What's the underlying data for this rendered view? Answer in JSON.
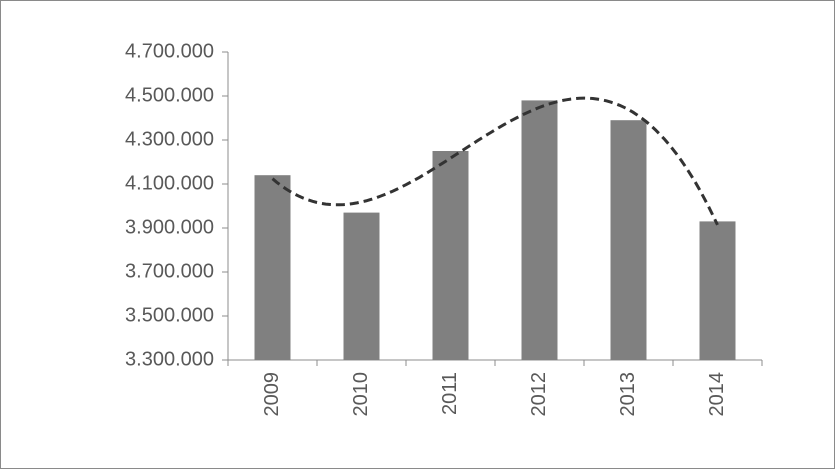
{
  "chart_data": {
    "type": "bar",
    "categories": [
      "2009",
      "2010",
      "2011",
      "2012",
      "2013",
      "2014"
    ],
    "values": [
      4140000,
      3970000,
      4250000,
      4480000,
      4390000,
      3930000
    ],
    "color": "#808080",
    "ylim": [
      3300000,
      4700000
    ],
    "yticks": [
      {
        "value": 3300000,
        "label": "3.300.000"
      },
      {
        "value": 3500000,
        "label": "3.500.000"
      },
      {
        "value": 3700000,
        "label": "3.700.000"
      },
      {
        "value": 3900000,
        "label": "3.900.000"
      },
      {
        "value": 4100000,
        "label": "4.100.000"
      },
      {
        "value": 4300000,
        "label": "4.300.000"
      },
      {
        "value": 4500000,
        "label": "4.500.000"
      },
      {
        "value": 4700000,
        "label": "4.700.000"
      }
    ],
    "grid": false,
    "trendline": {
      "order": 3,
      "color": "#333333"
    }
  }
}
